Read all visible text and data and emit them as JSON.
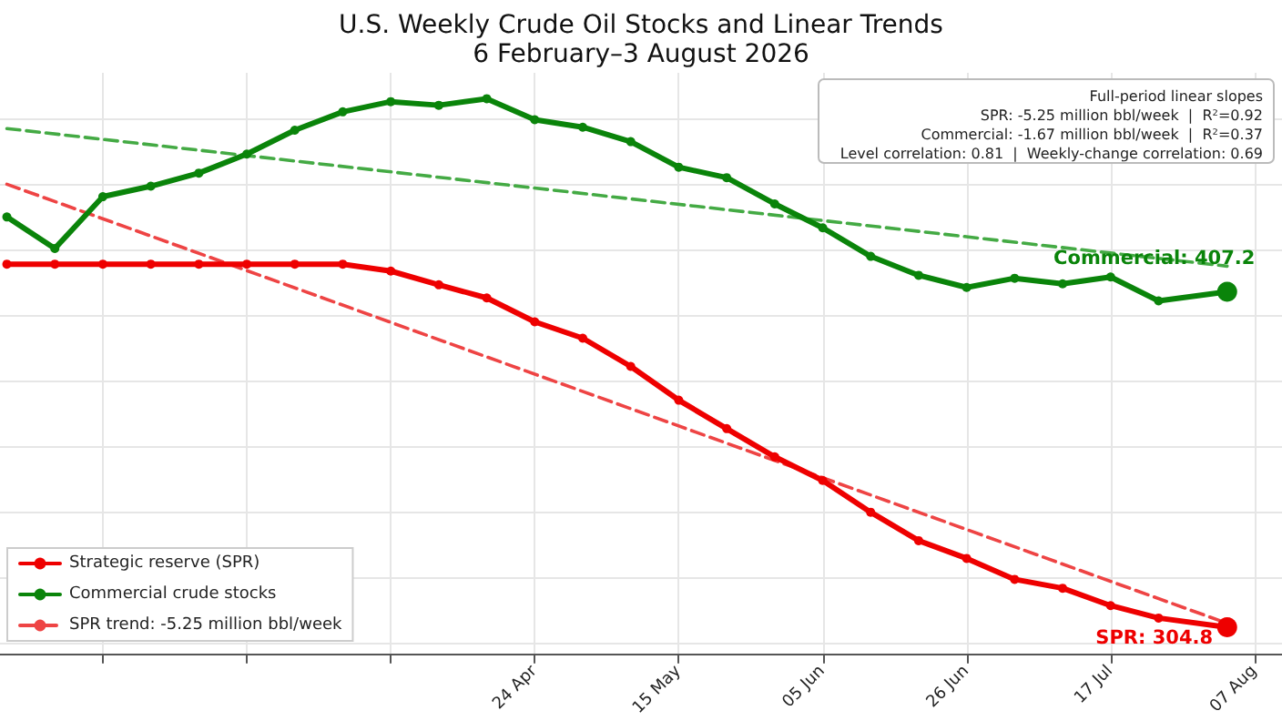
{
  "chart_data": {
    "type": "line",
    "title": "U.S. Weekly Crude Oil Stocks and Linear Trends",
    "subtitle": "6 February–3 August 2026",
    "x": [
      "2026-02-06",
      "2026-02-13",
      "2026-02-20",
      "2026-02-27",
      "2026-03-06",
      "2026-03-13",
      "2026-03-20",
      "2026-03-27",
      "2026-04-03",
      "2026-04-10",
      "2026-04-17",
      "2026-04-24",
      "2026-05-01",
      "2026-05-08",
      "2026-05-15",
      "2026-05-22",
      "2026-05-29",
      "2026-06-05",
      "2026-06-12",
      "2026-06-19",
      "2026-06-26",
      "2026-07-03",
      "2026-07-10",
      "2026-07-17",
      "2026-07-24",
      "2026-08-03"
    ],
    "series": [
      {
        "name": "Strategic reserve (SPR)",
        "color": "#ee0000",
        "values": [
          415.6,
          415.6,
          415.6,
          415.6,
          415.6,
          415.6,
          415.6,
          415.6,
          413.5,
          409.3,
          405.3,
          398.0,
          393.0,
          384.4,
          374.1,
          365.4,
          356.8,
          349.6,
          339.9,
          331.2,
          325.8,
          319.4,
          316.7,
          311.4,
          307.6,
          304.8
        ],
        "value_labels": [
          null,
          null,
          null,
          null,
          null,
          null,
          null,
          null,
          null,
          null,
          null,
          null,
          null,
          null,
          null,
          null,
          null,
          null,
          null,
          null,
          null,
          null,
          null,
          null,
          null,
          "SPR: 304.8"
        ]
      },
      {
        "name": "Commercial crude stocks",
        "color": "#0a840a",
        "values": [
          430,
          420.4,
          436.2,
          439.4,
          443.4,
          449.2,
          456.5,
          462.1,
          465.2,
          464.1,
          466.1,
          459.7,
          457.4,
          453.0,
          445.2,
          442.0,
          434.0,
          426.7,
          418.0,
          412.2,
          408.5,
          411.3,
          409.6,
          411.7,
          404.4,
          407.2
        ],
        "value_labels": [
          null,
          null,
          null,
          null,
          null,
          null,
          null,
          null,
          null,
          null,
          null,
          null,
          null,
          null,
          null,
          null,
          null,
          null,
          null,
          null,
          null,
          null,
          null,
          null,
          null,
          "Commercial: 407.2"
        ]
      },
      {
        "name": "SPR trend: -5.25 million bbl/week",
        "color": "#ee4444",
        "x": [
          "2026-02-06",
          "2026-08-03"
        ],
        "values": [
          440,
          306
        ],
        "line_style": "dashed",
        "marker": "none"
      },
      {
        "color": "#44aa44",
        "x": [
          "2026-02-06",
          "2026-08-03"
        ],
        "values": [
          457,
          415
        ],
        "line_style": "dashed",
        "marker": "none"
      }
    ],
    "annotations": [
      "Full-period linear slopes",
      "SPR: -5.25 million bbl/week  |  R²=0.92",
      "Commercial: -1.67 million bbl/week  |  R²=0.37",
      "Level correlation: 0.81  |  Weekly-change correlation: 0.69"
    ],
    "xlim": [
      "2026-02-05",
      "2026-08-11"
    ],
    "xticks": [
      {
        "value": "2026-02-20",
        "label": null
      },
      {
        "value": "2026-03-13",
        "label": null
      },
      {
        "value": "2026-04-03",
        "label": null
      },
      {
        "value": "2026-04-24",
        "label": "24 Apr"
      },
      {
        "value": "2026-05-15",
        "label": "15 May"
      },
      {
        "value": "2026-06-05",
        "label": "05 Jun"
      },
      {
        "value": "2026-06-26",
        "label": "26 Jun"
      },
      {
        "value": "2026-07-17",
        "label": "17 Jul"
      },
      {
        "value": "2026-08-07",
        "label": "07 Aug"
      }
    ],
    "ylim": [
      296.5,
      474
    ],
    "yticks": [
      {
        "value": 300,
        "label": null
      },
      {
        "value": 320,
        "label": null
      },
      {
        "value": 340,
        "label": null
      },
      {
        "value": 360,
        "label": null
      },
      {
        "value": 380,
        "label": null
      },
      {
        "value": 400,
        "label": null
      },
      {
        "value": 420,
        "label": null
      },
      {
        "value": 440,
        "label": null
      },
      {
        "value": 460,
        "label": null
      }
    ],
    "tick_labels": "x",
    "grid": true,
    "legend": "bottom left",
    "marker": "circle",
    "line_style": "solid"
  }
}
